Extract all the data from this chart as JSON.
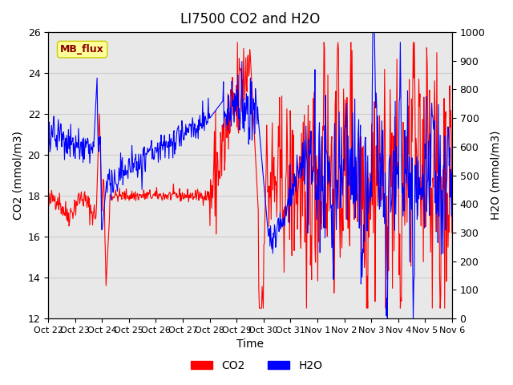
{
  "title": "LI7500 CO2 and H2O",
  "xlabel": "Time",
  "ylabel_left": "CO2 (mmol/m3)",
  "ylabel_right": "H2O (mmol/m3)",
  "ylim_left": [
    12,
    26
  ],
  "ylim_right": [
    0,
    1000
  ],
  "yticks_left": [
    12,
    14,
    16,
    18,
    20,
    22,
    24,
    26
  ],
  "yticks_right": [
    0,
    100,
    200,
    300,
    400,
    500,
    600,
    700,
    800,
    900,
    1000
  ],
  "xtick_labels": [
    "Oct 22",
    "Oct 23",
    "Oct 24",
    "Oct 25",
    "Oct 26",
    "Oct 27",
    "Oct 28",
    "Oct 29",
    "Oct 30",
    "Oct 31",
    "Nov 1",
    "Nov 2",
    "Nov 3",
    "Nov 4",
    "Nov 5",
    "Nov 6"
  ],
  "co2_color": "#FF0000",
  "h2o_color": "#0000FF",
  "background_color": "#FFFFFF",
  "grid_color": "#CCCCCC",
  "annotation_text": "MB_flux",
  "annotation_bg": "#FFFF99",
  "annotation_border": "#CCCC00",
  "legend_co2": "CO2",
  "legend_h2o": "H2O",
  "title_fontsize": 12,
  "axis_fontsize": 10,
  "tick_fontsize": 9
}
